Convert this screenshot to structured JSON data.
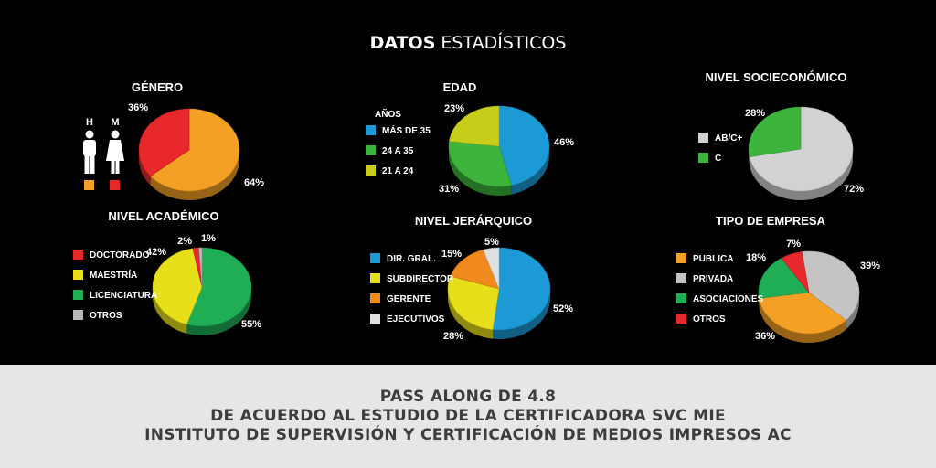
{
  "header": {
    "title_bold": "DATOS",
    "title_rest": " ESTADÍSTICOS"
  },
  "footer": {
    "line1": "PASS ALONG DE 4.8",
    "line2": "DE ACUERDO AL ESTUDIO DE LA CERTIFICADORA SVC MIE",
    "line3": "INSTITUTO DE SUPERVISIÓN Y CERTIFICACIÓN DE MEDIOS IMPRESOS AC"
  },
  "gender_icons": {
    "male_label": "H",
    "female_label": "M",
    "male_color": "#f4a024",
    "female_color": "#e8282b",
    "icon_names": [
      "man-icon",
      "woman-icon"
    ]
  },
  "chart_data": [
    {
      "id": "genero",
      "type": "pie",
      "title": "GÉNERO",
      "legend_title": "",
      "categories": [
        "H",
        "M"
      ],
      "values": [
        64,
        36
      ],
      "labels": [
        "64%",
        "36%"
      ],
      "colors": [
        "#f4a024",
        "#e8282b"
      ],
      "legend": []
    },
    {
      "id": "edad",
      "type": "pie",
      "title": "EDAD",
      "legend_title": "AÑOS",
      "categories": [
        "MÁS DE 35",
        "24 A 35",
        "21 A 24"
      ],
      "values": [
        46,
        31,
        23
      ],
      "labels": [
        "46%",
        "31%",
        "23%"
      ],
      "colors": [
        "#1c9ad6",
        "#3db53d",
        "#c8cc1a"
      ],
      "legend": [
        "MÁS DE 35",
        "24 A 35",
        "21 A 24"
      ]
    },
    {
      "id": "socio",
      "type": "pie",
      "title": "NIVEL SOCIECONÓMICO",
      "legend_title": "",
      "categories": [
        "AB/C+",
        "C"
      ],
      "values": [
        72,
        28
      ],
      "labels": [
        "72%",
        "28%"
      ],
      "colors": [
        "#d2d2d2",
        "#3db53d"
      ],
      "legend": [
        "AB/C+",
        "C"
      ]
    },
    {
      "id": "academico",
      "type": "pie",
      "title": "NIVEL ACADÉMICO",
      "legend_title": "",
      "categories": [
        "LICENCIATURA",
        "MAESTRÍA",
        "DOCTORADO",
        "OTROS"
      ],
      "values": [
        55,
        42,
        2,
        1
      ],
      "labels": [
        "55%",
        "42%",
        "2%",
        "1%"
      ],
      "colors": [
        "#1fae55",
        "#e6df1a",
        "#e8282b",
        "#b8b8b8"
      ],
      "legend": [
        "DOCTORADO",
        "MAESTRÍA",
        "LICENCIATURA",
        "OTROS"
      ],
      "legend_colors": [
        "#e8282b",
        "#e6df1a",
        "#1fae55",
        "#b8b8b8"
      ]
    },
    {
      "id": "jerarquico",
      "type": "pie",
      "title": "NIVEL JERÁRQUICO",
      "legend_title": "",
      "categories": [
        "DIR. GRAL.",
        "SUBDIRECTOR",
        "GERENTE",
        "EJECUTIVOS"
      ],
      "values": [
        52,
        28,
        15,
        5
      ],
      "labels": [
        "52%",
        "28%",
        "15%",
        "5%"
      ],
      "colors": [
        "#1c9ad6",
        "#e6df1a",
        "#f08a1c",
        "#e0e0e0"
      ],
      "legend": [
        "DIR. GRAL.",
        "SUBDIRECTOR",
        "GERENTE",
        "EJECUTIVOS"
      ]
    },
    {
      "id": "empresa",
      "type": "pie",
      "title": "TIPO DE EMPRESA",
      "legend_title": "",
      "categories": [
        "PRIVADA",
        "PUBLICA",
        "ASOCIACIONES",
        "OTROS"
      ],
      "values": [
        39,
        36,
        18,
        7
      ],
      "labels": [
        "39%",
        "36%",
        "18%",
        "7%"
      ],
      "colors": [
        "#c4c4c4",
        "#f4a024",
        "#1fae55",
        "#e8282b"
      ],
      "legend": [
        "PUBLICA",
        "PRIVADA",
        "ASOCIACIONES",
        "OTROS"
      ],
      "legend_colors": [
        "#f4a024",
        "#c4c4c4",
        "#1fae55",
        "#e8282b"
      ]
    }
  ]
}
